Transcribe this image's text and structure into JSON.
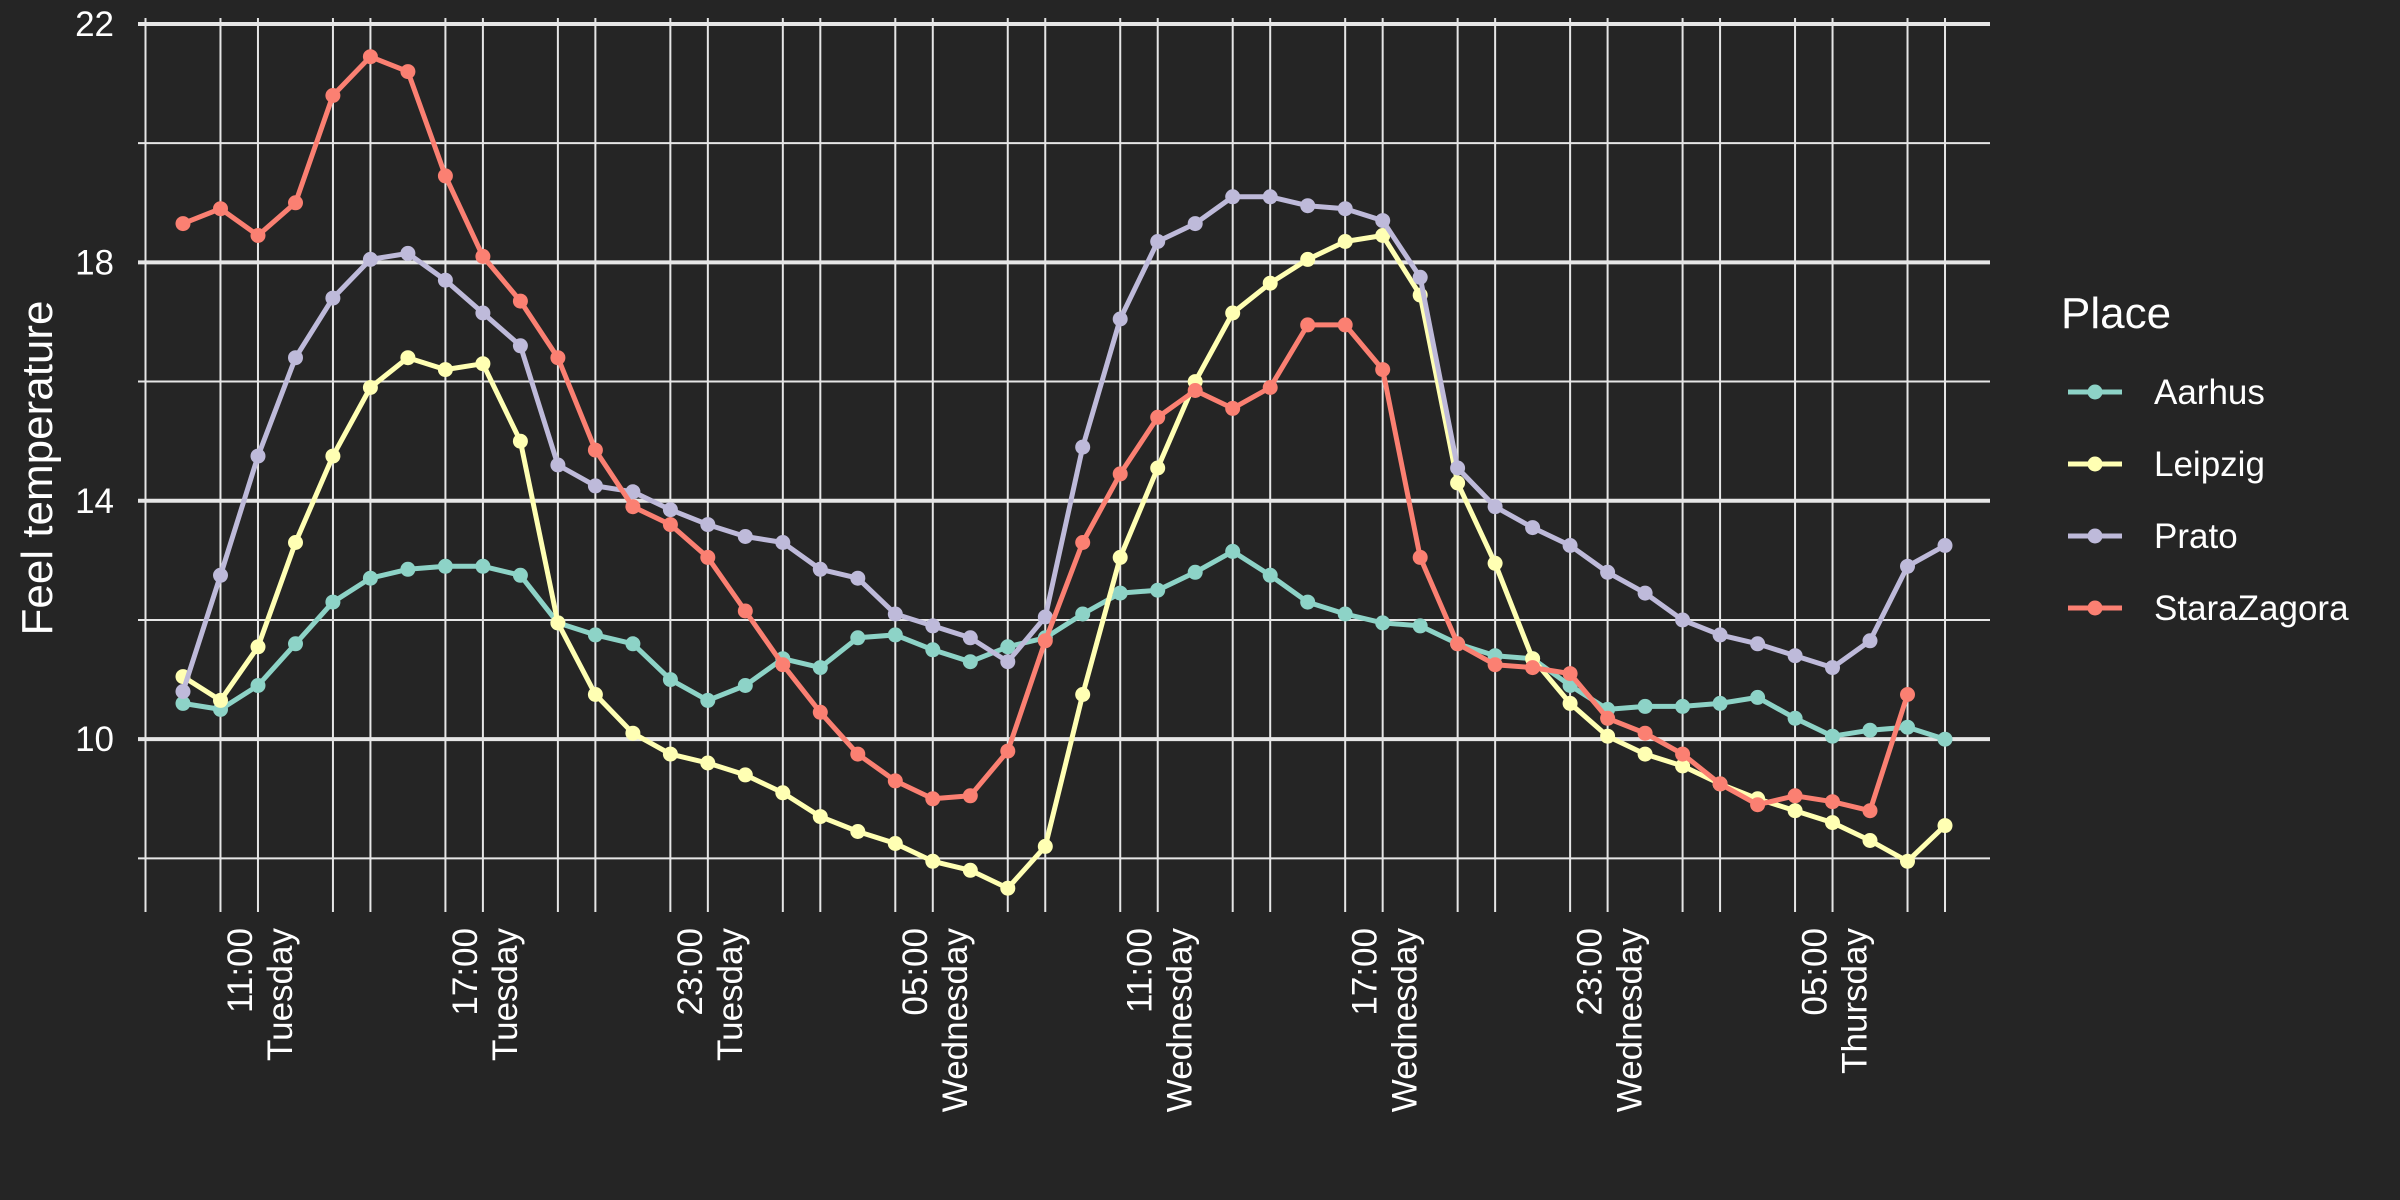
{
  "chart_data": {
    "type": "line",
    "ylabel": "Feel temperature",
    "xlabel": "",
    "ylim": [
      7.1,
      22.1
    ],
    "y_ticks": [
      10,
      14,
      18,
      22
    ],
    "x_tick_labels": [
      [
        "11:00",
        "Tuesday"
      ],
      [
        "17:00",
        "Tuesday"
      ],
      [
        "23:00",
        "Tuesday"
      ],
      [
        "05:00",
        "Wednesday"
      ],
      [
        "11:00",
        "Wednesday"
      ],
      [
        "17:00",
        "Wednesday"
      ],
      [
        "23:00",
        "Wednesday"
      ],
      [
        "05:00",
        "Thursday"
      ]
    ],
    "x_tick_hours": [
      2,
      8,
      14,
      20,
      26,
      32,
      38,
      44
    ],
    "xlim": [
      -1.2,
      48.2
    ],
    "grid": true,
    "legend_title": "Place",
    "legend_position": "right",
    "x_hours": [
      0,
      1,
      2,
      3,
      4,
      5,
      6,
      7,
      8,
      9,
      10,
      11,
      12,
      13,
      14,
      15,
      16,
      17,
      18,
      19,
      20,
      21,
      22,
      23,
      24,
      25,
      26,
      27,
      28,
      29,
      30,
      31,
      32,
      33,
      34,
      35,
      36,
      37,
      38,
      39,
      40,
      41,
      42,
      43,
      44,
      45,
      46,
      47
    ],
    "series": [
      {
        "name": "Aarhus",
        "color": "#8DD3C7",
        "values": [
          10.6,
          10.5,
          10.9,
          11.6,
          12.3,
          12.7,
          12.85,
          12.9,
          12.9,
          12.75,
          11.95,
          11.75,
          11.6,
          11.0,
          10.65,
          10.9,
          11.35,
          11.2,
          11.7,
          11.75,
          11.5,
          11.3,
          11.55,
          11.7,
          12.1,
          12.45,
          12.5,
          12.8,
          13.15,
          12.75,
          12.3,
          12.1,
          11.95,
          11.9,
          11.6,
          11.4,
          11.35,
          10.9,
          10.5,
          10.55,
          10.55,
          10.6,
          10.7,
          10.35,
          10.05,
          10.15,
          10.2,
          10.0
        ]
      },
      {
        "name": "Leipzig",
        "color": "#FFFFB3",
        "values": [
          11.05,
          10.65,
          11.55,
          13.3,
          14.75,
          15.9,
          16.4,
          16.2,
          16.3,
          15.0,
          11.95,
          10.75,
          10.1,
          9.75,
          9.6,
          9.4,
          9.1,
          8.7,
          8.45,
          8.25,
          7.95,
          7.8,
          7.5,
          8.2,
          10.75,
          13.05,
          14.55,
          16.0,
          17.15,
          17.65,
          18.05,
          18.35,
          18.45,
          17.45,
          14.3,
          12.95,
          11.35,
          10.6,
          10.05,
          9.75,
          9.55,
          9.25,
          9.0,
          8.8,
          8.6,
          8.3,
          7.95,
          8.55
        ]
      },
      {
        "name": "Prato",
        "color": "#BEBADA",
        "values": [
          10.8,
          12.75,
          14.75,
          16.4,
          17.4,
          18.05,
          18.15,
          17.7,
          17.15,
          16.6,
          14.6,
          14.25,
          14.15,
          13.85,
          13.6,
          13.4,
          13.3,
          12.85,
          12.7,
          12.1,
          11.9,
          11.7,
          11.3,
          12.05,
          14.9,
          17.05,
          18.35,
          18.65,
          19.1,
          19.1,
          18.95,
          18.9,
          18.7,
          17.75,
          14.55,
          13.9,
          13.55,
          13.25,
          12.8,
          12.45,
          12.0,
          11.75,
          11.6,
          11.4,
          11.2,
          11.65,
          12.9,
          13.25
        ]
      },
      {
        "name": "StaraZagora",
        "color": "#FB8072",
        "values": [
          18.65,
          18.9,
          18.45,
          19.0,
          20.8,
          21.45,
          21.2,
          19.45,
          18.1,
          17.35,
          16.4,
          14.85,
          13.9,
          13.6,
          13.05,
          12.15,
          11.25,
          10.45,
          9.75,
          9.3,
          9.0,
          9.05,
          9.8,
          11.65,
          13.3,
          14.45,
          15.4,
          15.85,
          15.55,
          15.9,
          16.95,
          16.95,
          16.2,
          13.05,
          11.6,
          11.25,
          11.2,
          11.1,
          10.35,
          10.1,
          9.75,
          9.25,
          8.9,
          9.05,
          8.95,
          8.8,
          10.75,
          null
        ]
      }
    ]
  }
}
